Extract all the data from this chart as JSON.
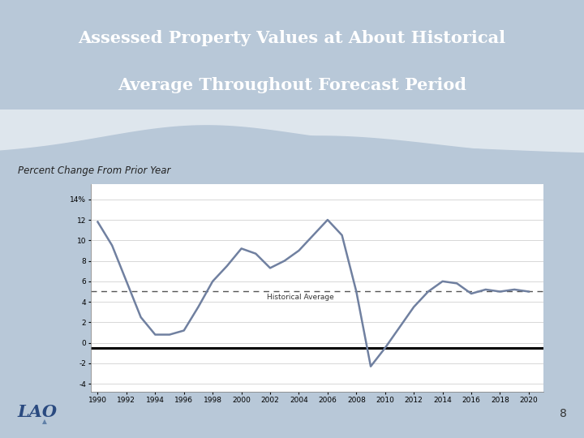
{
  "title_line1": "Assessed Property Values at About Historical",
  "title_line2": "Average Throughout Forecast Period",
  "subtitle": "Percent Change From Prior Year",
  "title_bg_color": "#4d607a",
  "slide_bg_color": "#b8c8d8",
  "chart_bg_color": "#ffffff",
  "historical_avg": 5.0,
  "historical_avg_label": "Historical Average",
  "years": [
    1990,
    1991,
    1992,
    1993,
    1994,
    1995,
    1996,
    1997,
    1998,
    1999,
    2000,
    2001,
    2002,
    2003,
    2004,
    2005,
    2006,
    2007,
    2008,
    2009,
    2010,
    2011,
    2012,
    2013,
    2014,
    2015,
    2016,
    2017,
    2018,
    2019,
    2020
  ],
  "values": [
    11.8,
    9.5,
    6.0,
    2.5,
    0.8,
    0.8,
    1.2,
    3.5,
    6.0,
    7.5,
    9.2,
    8.7,
    7.3,
    8.0,
    9.0,
    10.5,
    12.0,
    10.5,
    5.0,
    -2.3,
    -0.5,
    1.5,
    3.5,
    5.0,
    6.0,
    5.8,
    4.8,
    5.2,
    5.0,
    5.2,
    5.0
  ],
  "line_color": "#7080a0",
  "line_width": 1.8,
  "yticks": [
    -4,
    -2,
    0,
    2,
    4,
    6,
    8,
    10,
    12,
    14
  ],
  "ylim": [
    -4.8,
    15.5
  ],
  "xtick_labels": [
    "1990",
    "1992",
    "1994",
    "1996",
    "1998",
    "2000",
    "2002",
    "2004",
    "2006",
    "2008",
    "2010",
    "2012",
    "2014",
    "2016",
    "2018",
    "2020"
  ],
  "page_number": "8",
  "lao_text": "LAO",
  "dashed_line_color": "#555555",
  "solid_line_color": "#000000",
  "solid_line_value": -0.5,
  "wave_color1": "#c8d5e2",
  "wave_color2": "#d8e2ec"
}
